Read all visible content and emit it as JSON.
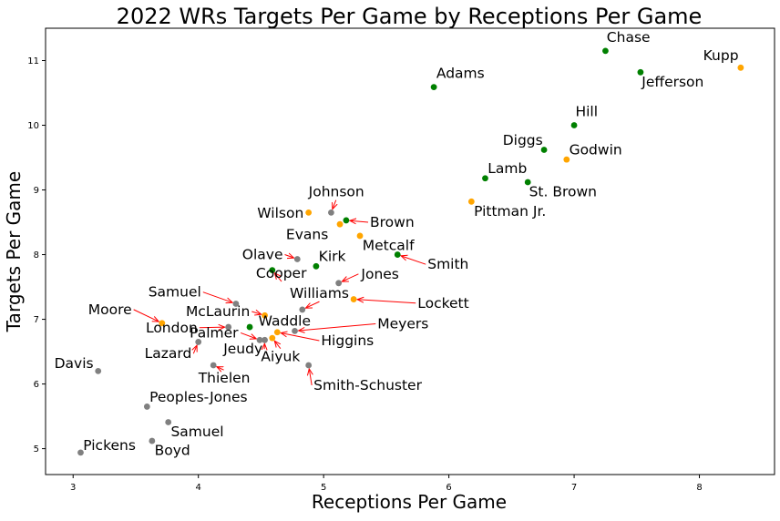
{
  "chart_data": {
    "type": "scatter",
    "title": "2022 WRs Targets Per Game by Receptions Per Game",
    "xlabel": "Receptions Per Game",
    "ylabel": "Targets Per Game",
    "xlim": [
      2.78,
      8.6
    ],
    "ylim": [
      4.6,
      11.5
    ],
    "xticks": [
      3,
      4,
      5,
      6,
      7,
      8
    ],
    "yticks": [
      5,
      6,
      7,
      8,
      9,
      10,
      11
    ],
    "grid": false,
    "colors": {
      "green": "#008000",
      "orange": "#ffa500",
      "gray": "#808080",
      "arrow": "#ff0000"
    },
    "points": [
      {
        "label": "Chase",
        "x": 7.25,
        "y": 11.15,
        "color": "green"
      },
      {
        "label": "Jefferson",
        "x": 7.53,
        "y": 10.82,
        "color": "green"
      },
      {
        "label": "Kupp",
        "x": 8.33,
        "y": 10.89,
        "color": "orange"
      },
      {
        "label": "Adams",
        "x": 5.88,
        "y": 10.59,
        "color": "green"
      },
      {
        "label": "Hill",
        "x": 7.0,
        "y": 10.0,
        "color": "green"
      },
      {
        "label": "Diggs",
        "x": 6.76,
        "y": 9.62,
        "color": "green"
      },
      {
        "label": "Godwin",
        "x": 6.94,
        "y": 9.47,
        "color": "orange"
      },
      {
        "label": "Lamb",
        "x": 6.29,
        "y": 9.18,
        "color": "green"
      },
      {
        "label": "St. Brown",
        "x": 6.63,
        "y": 9.12,
        "color": "green"
      },
      {
        "label": "Pittman Jr.",
        "x": 6.18,
        "y": 8.82,
        "color": "orange"
      },
      {
        "label": "Johnson",
        "x": 5.06,
        "y": 8.65,
        "color": "gray"
      },
      {
        "label": "Wilson",
        "x": 4.88,
        "y": 8.65,
        "color": "orange"
      },
      {
        "label": "Brown",
        "x": 5.18,
        "y": 8.53,
        "color": "green"
      },
      {
        "label": "Evans",
        "x": 5.13,
        "y": 8.47,
        "color": "orange"
      },
      {
        "label": "Metcalf",
        "x": 5.29,
        "y": 8.29,
        "color": "orange"
      },
      {
        "label": "Smith",
        "x": 5.59,
        "y": 8.0,
        "color": "green"
      },
      {
        "label": "Kirk",
        "x": 4.94,
        "y": 7.82,
        "color": "green"
      },
      {
        "label": "Olave",
        "x": 4.79,
        "y": 7.93,
        "color": "gray"
      },
      {
        "label": "Cooper",
        "x": 4.59,
        "y": 7.76,
        "color": "green"
      },
      {
        "label": "Jones",
        "x": 5.12,
        "y": 7.56,
        "color": "gray"
      },
      {
        "label": "Lockett",
        "x": 5.24,
        "y": 7.31,
        "color": "orange"
      },
      {
        "label": "Samuel",
        "x": 4.3,
        "y": 7.24,
        "color": "gray"
      },
      {
        "label": "Williams",
        "x": 4.83,
        "y": 7.15,
        "color": "gray"
      },
      {
        "label": "McLaurin",
        "x": 4.53,
        "y": 7.06,
        "color": "orange"
      },
      {
        "label": "Moore",
        "x": 3.71,
        "y": 6.94,
        "color": "orange"
      },
      {
        "label": "London",
        "x": 4.24,
        "y": 6.88,
        "color": "gray"
      },
      {
        "label": "Waddle",
        "x": 4.41,
        "y": 6.88,
        "color": "green"
      },
      {
        "label": "Meyers",
        "x": 4.77,
        "y": 6.82,
        "color": "gray"
      },
      {
        "label": "Higgins",
        "x": 4.63,
        "y": 6.8,
        "color": "orange"
      },
      {
        "label": "Palmer",
        "x": 4.49,
        "y": 6.68,
        "color": "gray"
      },
      {
        "label": "Jeudy",
        "x": 4.53,
        "y": 6.68,
        "color": "gray"
      },
      {
        "label": "Aiyuk",
        "x": 4.59,
        "y": 6.71,
        "color": "orange"
      },
      {
        "label": "Lazard",
        "x": 4.0,
        "y": 6.65,
        "color": "gray"
      },
      {
        "label": "Smith-Schuster",
        "x": 4.88,
        "y": 6.29,
        "color": "gray"
      },
      {
        "label": "Thielen",
        "x": 4.12,
        "y": 6.29,
        "color": "gray"
      },
      {
        "label": "Davis",
        "x": 3.2,
        "y": 6.2,
        "color": "gray"
      },
      {
        "label": "Peoples-Jones",
        "x": 3.59,
        "y": 5.65,
        "color": "gray"
      },
      {
        "label": "Samuel",
        "x": 3.76,
        "y": 5.41,
        "color": "gray"
      },
      {
        "label": "Boyd",
        "x": 3.63,
        "y": 5.12,
        "color": "gray"
      },
      {
        "label": "Pickens",
        "x": 3.06,
        "y": 4.94,
        "color": "gray"
      }
    ],
    "labels": [
      {
        "text": "Chase",
        "x": 7.26,
        "y": 11.29
      },
      {
        "text": "Jefferson",
        "x": 7.54,
        "y": 10.6
      },
      {
        "text": "Kupp",
        "x": 8.03,
        "y": 11.01
      },
      {
        "text": "Adams",
        "x": 5.9,
        "y": 10.73
      },
      {
        "text": "Hill",
        "x": 7.01,
        "y": 10.14
      },
      {
        "text": "Diggs",
        "x": 6.43,
        "y": 9.7
      },
      {
        "text": "Godwin",
        "x": 6.96,
        "y": 9.55
      },
      {
        "text": "Lamb",
        "x": 6.31,
        "y": 9.26
      },
      {
        "text": "St. Brown",
        "x": 6.64,
        "y": 8.9
      },
      {
        "text": "Pittman Jr.",
        "x": 6.2,
        "y": 8.6
      },
      {
        "text": "Johnson",
        "x": 4.88,
        "y": 8.9,
        "ax": 5.06,
        "ay": 8.65
      },
      {
        "text": "Wilson",
        "x": 4.47,
        "y": 8.57
      },
      {
        "text": "Brown",
        "x": 5.37,
        "y": 8.43,
        "ax": 5.18,
        "ay": 8.53
      },
      {
        "text": "Evans",
        "x": 4.7,
        "y": 8.24
      },
      {
        "text": "Metcalf",
        "x": 5.31,
        "y": 8.07
      },
      {
        "text": "Smith",
        "x": 5.83,
        "y": 7.78,
        "ax": 5.59,
        "ay": 8.0
      },
      {
        "text": "Kirk",
        "x": 4.96,
        "y": 7.9
      },
      {
        "text": "Olave",
        "x": 4.35,
        "y": 7.93,
        "ax": 4.79,
        "ay": 7.93
      },
      {
        "text": "Cooper",
        "x": 4.46,
        "y": 7.64,
        "ax": 4.59,
        "ay": 7.76
      },
      {
        "text": "Jones",
        "x": 5.3,
        "y": 7.63,
        "ax": 5.12,
        "ay": 7.56
      },
      {
        "text": "Lockett",
        "x": 5.75,
        "y": 7.18,
        "ax": 5.24,
        "ay": 7.31
      },
      {
        "text": "Samuel",
        "x": 3.6,
        "y": 7.35,
        "ax": 4.3,
        "ay": 7.24
      },
      {
        "text": "Williams",
        "x": 4.73,
        "y": 7.33,
        "ax": 4.83,
        "ay": 7.15
      },
      {
        "text": "McLaurin",
        "x": 3.9,
        "y": 7.05,
        "ax": 4.53,
        "ay": 7.06
      },
      {
        "text": "Moore",
        "x": 3.12,
        "y": 7.08,
        "ax": 3.71,
        "ay": 6.94
      },
      {
        "text": "London",
        "x": 3.58,
        "y": 6.8,
        "ax": 4.24,
        "ay": 6.88
      },
      {
        "text": "Waddle",
        "x": 4.48,
        "y": 6.9
      },
      {
        "text": "Meyers",
        "x": 5.43,
        "y": 6.86,
        "ax": 4.77,
        "ay": 6.82
      },
      {
        "text": "Higgins",
        "x": 4.98,
        "y": 6.6,
        "ax": 4.63,
        "ay": 6.8
      },
      {
        "text": "Palmer",
        "x": 3.93,
        "y": 6.72,
        "ax": 4.49,
        "ay": 6.68
      },
      {
        "text": "Jeudy",
        "x": 4.2,
        "y": 6.47,
        "ax": 4.53,
        "ay": 6.68
      },
      {
        "text": "Aiyuk",
        "x": 4.5,
        "y": 6.35,
        "ax": 4.59,
        "ay": 6.71
      },
      {
        "text": "Lazard",
        "x": 3.57,
        "y": 6.4,
        "ax": 4.0,
        "ay": 6.65
      },
      {
        "text": "Smith-Schuster",
        "x": 4.92,
        "y": 5.91,
        "ax": 4.88,
        "ay": 6.29
      },
      {
        "text": "Thielen",
        "x": 4.0,
        "y": 6.02,
        "ax": 4.12,
        "ay": 6.29
      },
      {
        "text": "Davis",
        "x": 2.85,
        "y": 6.25
      },
      {
        "text": "Peoples-Jones",
        "x": 3.61,
        "y": 5.73
      },
      {
        "text": "Samuel",
        "x": 3.78,
        "y": 5.19
      },
      {
        "text": "Boyd",
        "x": 3.65,
        "y": 4.9
      },
      {
        "text": "Pickens",
        "x": 3.08,
        "y": 4.98
      }
    ]
  }
}
